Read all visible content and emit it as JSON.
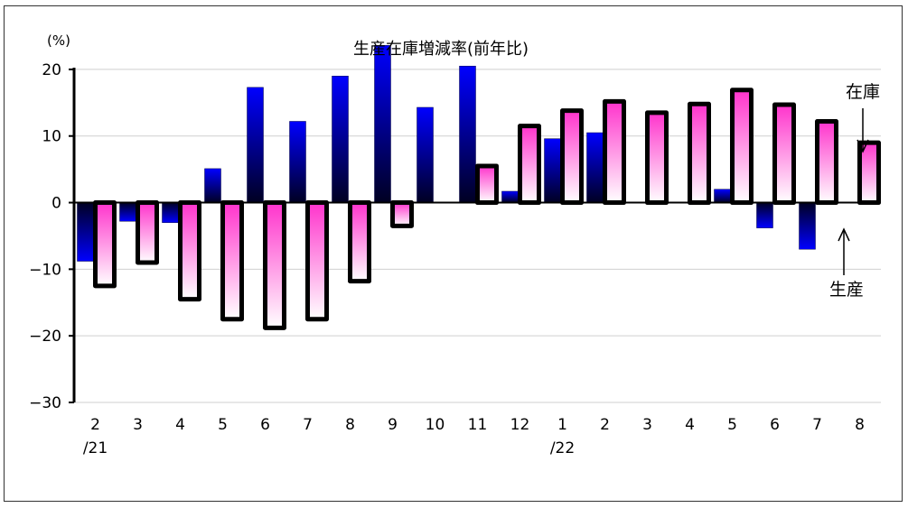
{
  "chart_data": {
    "type": "bar",
    "title": "生産在庫増減率(前年比)",
    "unit_label": "(%)",
    "ylim": [
      -30,
      25
    ],
    "yticks": [
      20,
      10,
      0,
      -10,
      -20,
      -30
    ],
    "ytick_labels": [
      "20",
      "10",
      "0",
      "−10",
      "−20",
      "−30"
    ],
    "categories": [
      "2",
      "3",
      "4",
      "5",
      "6",
      "7",
      "8",
      "9",
      "10",
      "11",
      "12",
      "1",
      "2",
      "3",
      "4",
      "5",
      "6",
      "7",
      "8"
    ],
    "category_sublabels": [
      "/21",
      "",
      "",
      "",
      "",
      "",
      "",
      "",
      "",
      "",
      "",
      "/22",
      "",
      "",
      "",
      "",
      "",
      "",
      ""
    ],
    "series": [
      {
        "name": "生産",
        "values": [
          -8.8,
          -2.8,
          -3.0,
          5.1,
          17.3,
          12.2,
          19.0,
          23.6,
          14.3,
          20.5,
          1.7,
          9.6,
          10.5,
          0.0,
          0.0,
          2.0,
          -3.8,
          -7.0,
          0.0
        ]
      },
      {
        "name": "在庫",
        "values": [
          -12.5,
          -9.0,
          -14.5,
          -17.5,
          -18.8,
          -17.5,
          -11.8,
          -3.5,
          0.0,
          5.5,
          11.5,
          13.8,
          15.2,
          13.5,
          14.8,
          16.9,
          14.7,
          12.2,
          9.0
        ]
      }
    ],
    "grid": true,
    "colors": {
      "production": "#0000ff",
      "inventory": "#ff33cc",
      "outline": "#000000"
    }
  }
}
